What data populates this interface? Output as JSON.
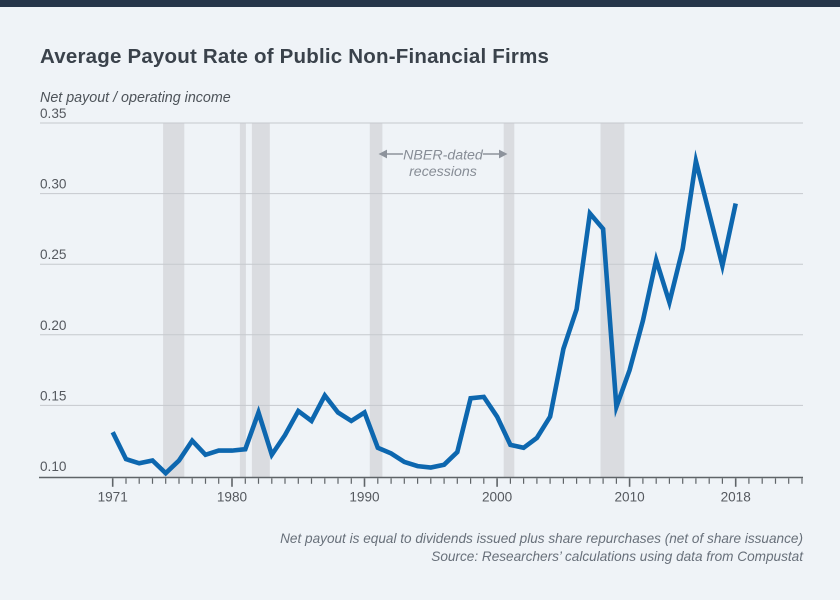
{
  "page": {
    "accent_bar_color": "#26364a",
    "background_color": "#eff3f7"
  },
  "chart_data": {
    "type": "line",
    "title": "Average Payout Rate of Public Non-Financial Firms",
    "ylabel": "Net payout / operating income",
    "xlabel": "",
    "grid": "horizontal",
    "legend": "none",
    "ylim": [
      0.1,
      0.35
    ],
    "yticks": [
      0.1,
      0.15,
      0.2,
      0.25,
      0.3,
      0.35
    ],
    "xticks_labeled": [
      1971,
      1980,
      1990,
      2000,
      2010,
      2018
    ],
    "xtick_minor_range": [
      1971,
      2023
    ],
    "line_color": "#0d67af",
    "band_color": "#dadce0",
    "x": [
      1971,
      1972,
      1973,
      1974,
      1975,
      1976,
      1977,
      1978,
      1979,
      1980,
      1981,
      1982,
      1983,
      1984,
      1985,
      1986,
      1987,
      1988,
      1989,
      1990,
      1991,
      1992,
      1993,
      1994,
      1995,
      1996,
      1997,
      1998,
      1999,
      2000,
      2001,
      2002,
      2003,
      2004,
      2005,
      2006,
      2007,
      2008,
      2009,
      2010,
      2011,
      2012,
      2013,
      2014,
      2015,
      2016,
      2017,
      2018
    ],
    "values": [
      0.131,
      0.112,
      0.109,
      0.111,
      0.102,
      0.111,
      0.125,
      0.115,
      0.118,
      0.118,
      0.119,
      0.145,
      0.115,
      0.129,
      0.146,
      0.139,
      0.157,
      0.145,
      0.139,
      0.145,
      0.12,
      0.116,
      0.11,
      0.107,
      0.106,
      0.108,
      0.117,
      0.155,
      0.156,
      0.142,
      0.122,
      0.12,
      0.127,
      0.142,
      0.19,
      0.218,
      0.286,
      0.275,
      0.149,
      0.175,
      0.21,
      0.253,
      0.223,
      0.261,
      0.323,
      0.286,
      0.249,
      0.293
    ],
    "recession_bands": [
      [
        1974.8,
        1976.4
      ],
      [
        1980.6,
        1981.05
      ],
      [
        1981.5,
        1982.85
      ],
      [
        1990.4,
        1991.35
      ],
      [
        2000.5,
        2001.3
      ],
      [
        2007.8,
        2009.6
      ]
    ],
    "annotation": {
      "line1": "NBER-dated",
      "line2": "recessions"
    },
    "footnotes": [
      "Net payout is equal to dividends issued plus share repurchases (net of share issuance)",
      "Source: Researchers’ calculations using data from Compustat"
    ]
  }
}
